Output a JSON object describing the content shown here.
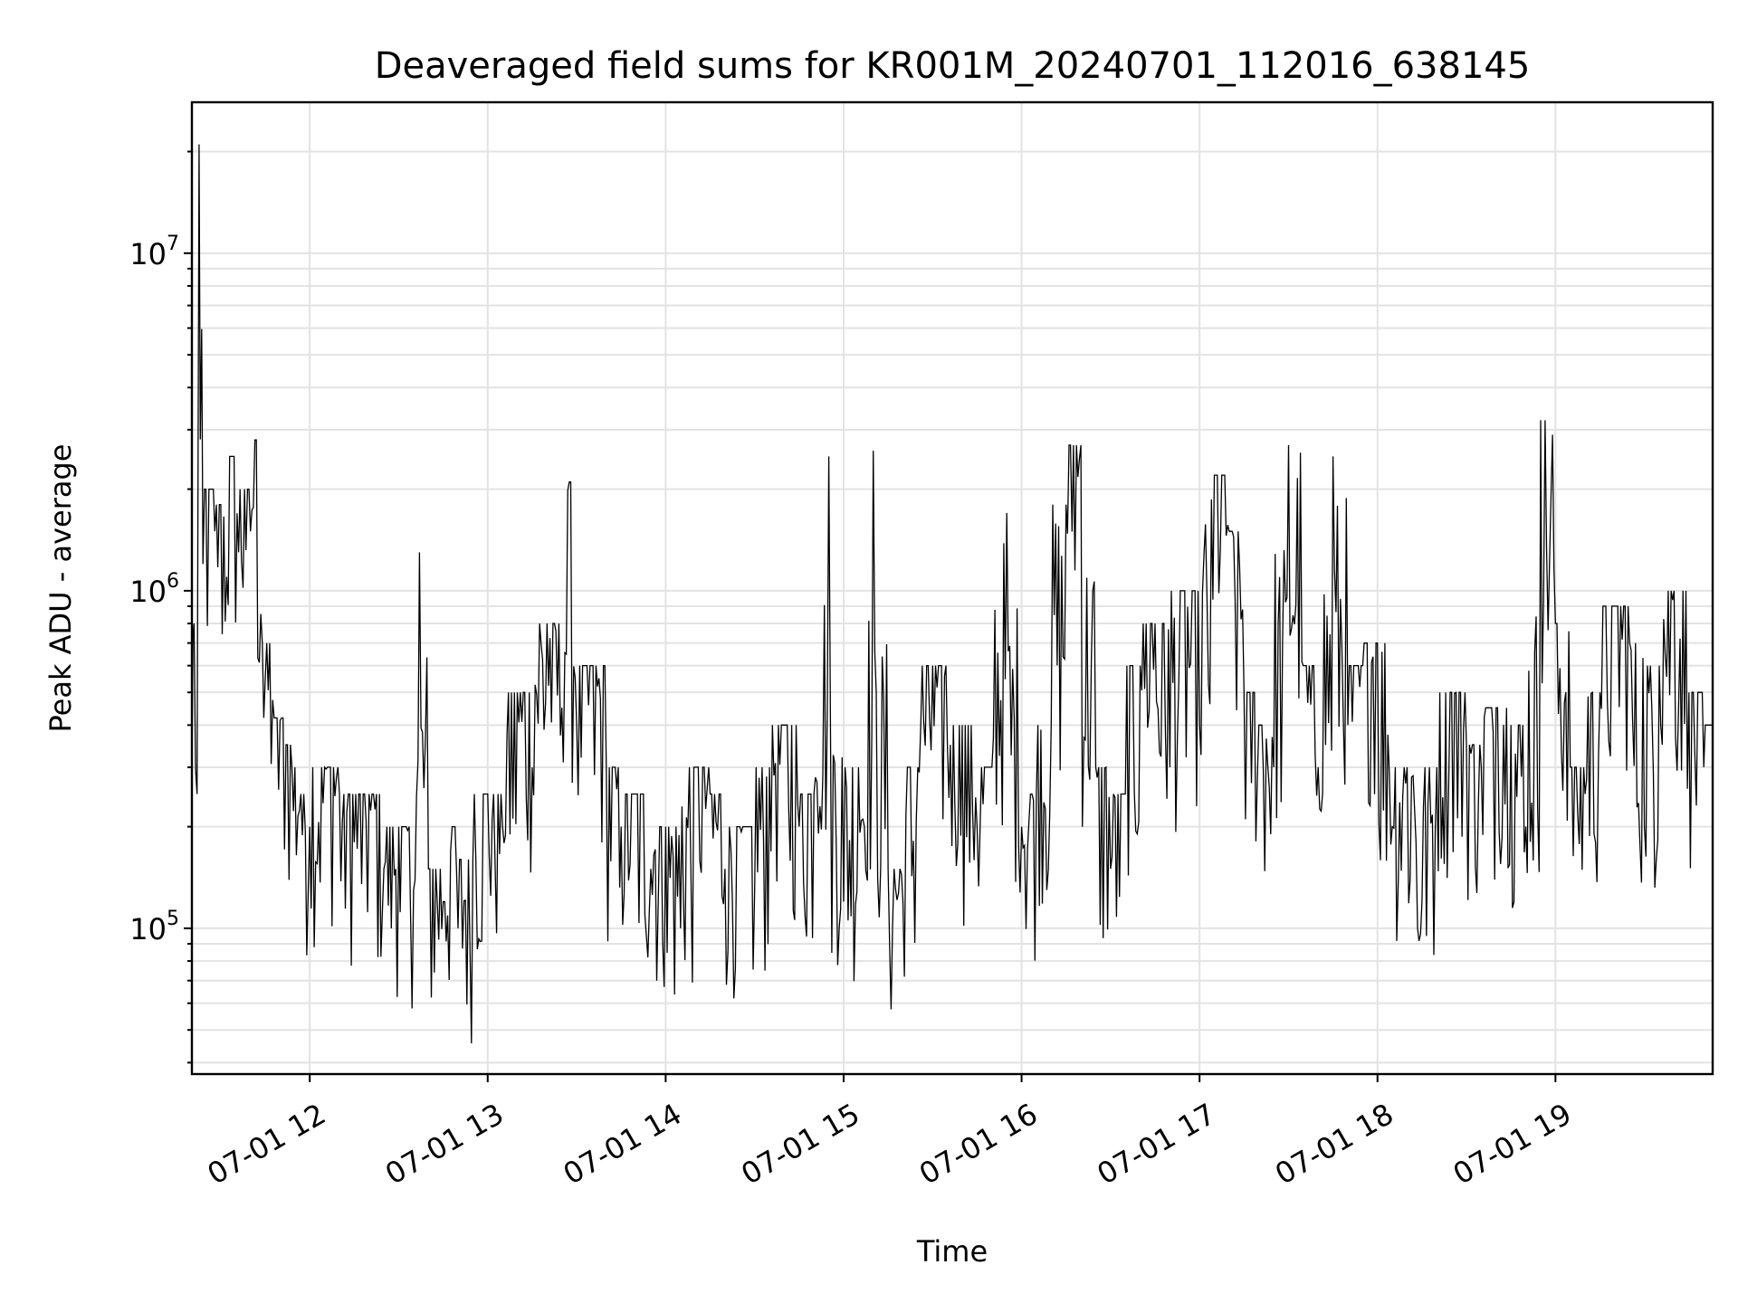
{
  "chart_data": {
    "type": "line",
    "title": "Deaveraged field sums for KR001M_20240701_112016_638145",
    "xlabel": "Time",
    "ylabel": "Peak ADU - average",
    "yscale": "log",
    "xlim": [
      "2024-07-01 11:20:16",
      "2024-07-01 19:53:00"
    ],
    "ylim": [
      37000,
      28000000
    ],
    "grid": true,
    "grid_minor_y": true,
    "line_color": "#000000",
    "x_ticks": [
      {
        "value": "2024-07-01 12:00",
        "label": "07-01 12"
      },
      {
        "value": "2024-07-01 13:00",
        "label": "07-01 13"
      },
      {
        "value": "2024-07-01 14:00",
        "label": "07-01 14"
      },
      {
        "value": "2024-07-01 15:00",
        "label": "07-01 15"
      },
      {
        "value": "2024-07-01 16:00",
        "label": "07-01 16"
      },
      {
        "value": "2024-07-01 17:00",
        "label": "07-01 17"
      },
      {
        "value": "2024-07-01 18:00",
        "label": "07-01 18"
      },
      {
        "value": "2024-07-01 19:00",
        "label": "07-01 19"
      }
    ],
    "y_ticks": [
      {
        "value": 100000,
        "base": "10",
        "exp": "5"
      },
      {
        "value": 1000000,
        "base": "10",
        "exp": "6"
      },
      {
        "value": 10000000,
        "base": "10",
        "exp": "7"
      }
    ],
    "series": [
      {
        "x": [
          "2024-07-01 11:20:16",
          "2024-07-01 11:21:00",
          "2024-07-01 11:22:00",
          "2024-07-01 11:22:40",
          "2024-07-01 11:24:00",
          "2024-07-01 11:26:00",
          "2024-07-01 11:28:00",
          "2024-07-01 11:30:00",
          "2024-07-01 11:32:00",
          "2024-07-01 11:34:00",
          "2024-07-01 11:36:00",
          "2024-07-01 11:38:00",
          "2024-07-01 11:40:00",
          "2024-07-01 11:42:00",
          "2024-07-01 11:44:00",
          "2024-07-01 11:48:00",
          "2024-07-01 11:52:00",
          "2024-07-01 11:54:00",
          "2024-07-01 11:57:00",
          "2024-07-01 12:00:00",
          "2024-07-01 12:05:00",
          "2024-07-01 12:10:00",
          "2024-07-01 12:15:00",
          "2024-07-01 12:20:00",
          "2024-07-01 12:25:00",
          "2024-07-01 12:30:00",
          "2024-07-01 12:35:00",
          "2024-07-01 12:37:00",
          "2024-07-01 12:40:00",
          "2024-07-01 12:45:00",
          "2024-07-01 12:48:00",
          "2024-07-01 12:50:00",
          "2024-07-01 12:55:00",
          "2024-07-01 13:00:00",
          "2024-07-01 13:05:00",
          "2024-07-01 13:10:00",
          "2024-07-01 13:15:00",
          "2024-07-01 13:20:00",
          "2024-07-01 13:25:00",
          "2024-07-01 13:28:00",
          "2024-07-01 13:30:00",
          "2024-07-01 13:35:00",
          "2024-07-01 13:40:00",
          "2024-07-01 13:45:00",
          "2024-07-01 13:50:00",
          "2024-07-01 13:55:00",
          "2024-07-01 14:00:00",
          "2024-07-01 14:05:00",
          "2024-07-01 14:10:00",
          "2024-07-01 14:15:00",
          "2024-07-01 14:20:00",
          "2024-07-01 14:25:00",
          "2024-07-01 14:30:00",
          "2024-07-01 14:35:00",
          "2024-07-01 14:40:00",
          "2024-07-01 14:45:00",
          "2024-07-01 14:50:00",
          "2024-07-01 14:55:00",
          "2024-07-01 15:00:00",
          "2024-07-01 15:05:00",
          "2024-07-01 15:07:00",
          "2024-07-01 15:10:00",
          "2024-07-01 15:15:00",
          "2024-07-01 15:20:00",
          "2024-07-01 15:25:00",
          "2024-07-01 15:30:00",
          "2024-07-01 15:35:00",
          "2024-07-01 15:40:00",
          "2024-07-01 15:45:00",
          "2024-07-01 15:50:00",
          "2024-07-01 15:55:00",
          "2024-07-01 16:00:00",
          "2024-07-01 16:05:00",
          "2024-07-01 16:10:00",
          "2024-07-01 16:15:00",
          "2024-07-01 16:20:00",
          "2024-07-01 16:25:00",
          "2024-07-01 16:30:00",
          "2024-07-01 16:35:00",
          "2024-07-01 16:40:00",
          "2024-07-01 16:45:00",
          "2024-07-01 16:50:00",
          "2024-07-01 16:55:00",
          "2024-07-01 17:00:00",
          "2024-07-01 17:05:00",
          "2024-07-01 17:10:00",
          "2024-07-01 17:15:00",
          "2024-07-01 17:20:00",
          "2024-07-01 17:25:00",
          "2024-07-01 17:30:00",
          "2024-07-01 17:35:00",
          "2024-07-01 17:40:00",
          "2024-07-01 17:45:00",
          "2024-07-01 17:50:00",
          "2024-07-01 17:55:00",
          "2024-07-01 18:00:00",
          "2024-07-01 18:05:00",
          "2024-07-01 18:10:00",
          "2024-07-01 18:13:00",
          "2024-07-01 18:15:00",
          "2024-07-01 18:20:00",
          "2024-07-01 18:25:00",
          "2024-07-01 18:30:00",
          "2024-07-01 18:35:00",
          "2024-07-01 18:40:00",
          "2024-07-01 18:45:00",
          "2024-07-01 18:50:00",
          "2024-07-01 18:55:00",
          "2024-07-01 19:00:00",
          "2024-07-01 19:05:00",
          "2024-07-01 19:10:00",
          "2024-07-01 19:15:00",
          "2024-07-01 19:20:00",
          "2024-07-01 19:25:00",
          "2024-07-01 19:30:00",
          "2024-07-01 19:35:00",
          "2024-07-01 19:40:00",
          "2024-07-01 19:45:00",
          "2024-07-01 19:50:00",
          "2024-07-01 19:53:00"
        ],
        "y": [
          300000,
          800000,
          250000,
          21000000,
          1200000,
          2000000,
          1500000,
          1800000,
          1100000,
          2500000,
          1300000,
          2000000,
          1500000,
          2800000,
          700000,
          420000,
          350000,
          300000,
          250000,
          200000,
          300000,
          250000,
          180000,
          250000,
          150000,
          200000,
          130000,
          1300000,
          150000,
          120000,
          200000,
          100000,
          160000,
          250000,
          200000,
          500000,
          300000,
          800000,
          450000,
          2100000,
          400000,
          600000,
          300000,
          200000,
          250000,
          150000,
          200000,
          100000,
          300000,
          250000,
          150000,
          200000,
          130000,
          300000,
          400000,
          200000,
          250000,
          2500000,
          120000,
          300000,
          200000,
          2600000,
          150000,
          120000,
          300000,
          600000,
          350000,
          400000,
          200000,
          300000,
          1700000,
          200000,
          250000,
          400000,
          1800000,
          2700000,
          300000,
          150000,
          250000,
          600000,
          800000,
          300000,
          1000000,
          400000,
          2200000,
          1500000,
          500000,
          400000,
          300000,
          2700000,
          600000,
          300000,
          2500000,
          400000,
          600000,
          700000,
          200000,
          300000,
          180000,
          120000,
          300000,
          500000,
          350000,
          300000,
          450000,
          400000,
          200000,
          3200000,
          800000,
          300000,
          250000,
          500000,
          900000,
          700000,
          200000,
          600000,
          1000000,
          500000,
          300000,
          400000
        ]
      }
    ]
  }
}
